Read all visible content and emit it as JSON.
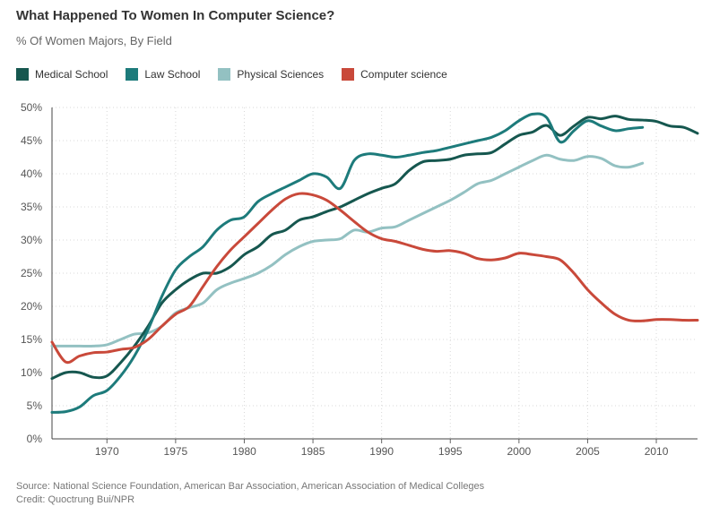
{
  "title": "What Happened To Women In Computer Science?",
  "subtitle": "% Of Women Majors, By Field",
  "source": "Source: National Science Foundation, American Bar Association, American Association of Medical Colleges",
  "credit": "Credit: Quoctrung Bui/NPR",
  "chart_data": {
    "type": "line",
    "title": "What Happened To Women In Computer Science?",
    "subtitle": "% Of Women Majors, By Field",
    "xlabel": "",
    "ylabel": "",
    "xlim": [
      1966,
      2013
    ],
    "ylim": [
      0,
      50
    ],
    "x_ticks": [
      1970,
      1975,
      1980,
      1985,
      1990,
      1995,
      2000,
      2005,
      2010
    ],
    "y_ticks": [
      0,
      5,
      10,
      15,
      20,
      25,
      30,
      35,
      40,
      45,
      50
    ],
    "y_tick_labels": [
      "0%",
      "5%",
      "10%",
      "15%",
      "20%",
      "25%",
      "30%",
      "35%",
      "40%",
      "45%",
      "50%"
    ],
    "grid": true,
    "legend_position": "top-left",
    "series": [
      {
        "name": "Medical School",
        "color": "#16574f",
        "points": [
          [
            1966,
            9.1
          ],
          [
            1967,
            10.0
          ],
          [
            1968,
            10.0
          ],
          [
            1969,
            9.3
          ],
          [
            1970,
            9.5
          ],
          [
            1971,
            11.5
          ],
          [
            1972,
            14.0
          ],
          [
            1973,
            17.0
          ],
          [
            1974,
            20.5
          ],
          [
            1975,
            22.5
          ],
          [
            1976,
            24.0
          ],
          [
            1977,
            25.0
          ],
          [
            1978,
            25.0
          ],
          [
            1979,
            26.0
          ],
          [
            1980,
            27.8
          ],
          [
            1981,
            29.0
          ],
          [
            1982,
            30.8
          ],
          [
            1983,
            31.5
          ],
          [
            1984,
            33.0
          ],
          [
            1985,
            33.5
          ],
          [
            1986,
            34.3
          ],
          [
            1987,
            35.0
          ],
          [
            1988,
            36.0
          ],
          [
            1989,
            37.0
          ],
          [
            1990,
            37.8
          ],
          [
            1991,
            38.5
          ],
          [
            1992,
            40.5
          ],
          [
            1993,
            41.8
          ],
          [
            1994,
            42.0
          ],
          [
            1995,
            42.2
          ],
          [
            1996,
            42.8
          ],
          [
            1997,
            43.0
          ],
          [
            1998,
            43.2
          ],
          [
            1999,
            44.5
          ],
          [
            2000,
            45.8
          ],
          [
            2001,
            46.3
          ],
          [
            2002,
            47.3
          ],
          [
            2003,
            45.8
          ],
          [
            2004,
            47.2
          ],
          [
            2005,
            48.5
          ],
          [
            2006,
            48.3
          ],
          [
            2007,
            48.7
          ],
          [
            2008,
            48.2
          ],
          [
            2009,
            48.1
          ],
          [
            2010,
            47.9
          ],
          [
            2011,
            47.2
          ],
          [
            2012,
            47.0
          ],
          [
            2013,
            46.1
          ]
        ]
      },
      {
        "name": "Law School",
        "color": "#1d7b7b",
        "points": [
          [
            1966,
            4.0
          ],
          [
            1967,
            4.1
          ],
          [
            1968,
            4.8
          ],
          [
            1969,
            6.5
          ],
          [
            1970,
            7.3
          ],
          [
            1971,
            9.5
          ],
          [
            1972,
            12.5
          ],
          [
            1973,
            16.5
          ],
          [
            1974,
            21.5
          ],
          [
            1975,
            25.5
          ],
          [
            1976,
            27.5
          ],
          [
            1977,
            29.0
          ],
          [
            1978,
            31.5
          ],
          [
            1979,
            33.0
          ],
          [
            1980,
            33.5
          ],
          [
            1981,
            35.8
          ],
          [
            1982,
            37.0
          ],
          [
            1983,
            38.0
          ],
          [
            1984,
            39.0
          ],
          [
            1985,
            40.0
          ],
          [
            1986,
            39.5
          ],
          [
            1987,
            37.8
          ],
          [
            1988,
            42.0
          ],
          [
            1989,
            43.0
          ],
          [
            1990,
            42.8
          ],
          [
            1991,
            42.5
          ],
          [
            1992,
            42.8
          ],
          [
            1993,
            43.2
          ],
          [
            1994,
            43.5
          ],
          [
            1995,
            44.0
          ],
          [
            1996,
            44.5
          ],
          [
            1997,
            45.0
          ],
          [
            1998,
            45.5
          ],
          [
            1999,
            46.5
          ],
          [
            2000,
            48.0
          ],
          [
            2001,
            49.0
          ],
          [
            2002,
            48.5
          ],
          [
            2003,
            44.8
          ],
          [
            2004,
            46.5
          ],
          [
            2005,
            48.0
          ],
          [
            2006,
            47.2
          ],
          [
            2007,
            46.5
          ],
          [
            2008,
            46.8
          ],
          [
            2009,
            47.0
          ]
        ]
      },
      {
        "name": "Physical Sciences",
        "color": "#93c1c2",
        "points": [
          [
            1966,
            14.0
          ],
          [
            1967,
            14.0
          ],
          [
            1968,
            14.0
          ],
          [
            1969,
            14.0
          ],
          [
            1970,
            14.2
          ],
          [
            1971,
            15.0
          ],
          [
            1972,
            15.8
          ],
          [
            1973,
            16.0
          ],
          [
            1974,
            17.0
          ],
          [
            1975,
            19.0
          ],
          [
            1976,
            19.8
          ],
          [
            1977,
            20.5
          ],
          [
            1978,
            22.5
          ],
          [
            1979,
            23.5
          ],
          [
            1980,
            24.2
          ],
          [
            1981,
            25.0
          ],
          [
            1982,
            26.2
          ],
          [
            1983,
            27.8
          ],
          [
            1984,
            29.0
          ],
          [
            1985,
            29.8
          ],
          [
            1986,
            30.0
          ],
          [
            1987,
            30.2
          ],
          [
            1988,
            31.5
          ],
          [
            1989,
            31.2
          ],
          [
            1990,
            31.8
          ],
          [
            1991,
            32.0
          ],
          [
            1992,
            33.0
          ],
          [
            1993,
            34.0
          ],
          [
            1994,
            35.0
          ],
          [
            1995,
            36.0
          ],
          [
            1996,
            37.2
          ],
          [
            1997,
            38.5
          ],
          [
            1998,
            39.0
          ],
          [
            1999,
            40.0
          ],
          [
            2000,
            41.0
          ],
          [
            2001,
            42.0
          ],
          [
            2002,
            42.8
          ],
          [
            2003,
            42.2
          ],
          [
            2004,
            42.0
          ],
          [
            2005,
            42.6
          ],
          [
            2006,
            42.3
          ],
          [
            2007,
            41.2
          ],
          [
            2008,
            41.0
          ],
          [
            2009,
            41.6
          ]
        ]
      },
      {
        "name": "Computer science",
        "color": "#c9493a",
        "points": [
          [
            1966,
            14.6
          ],
          [
            1967,
            11.6
          ],
          [
            1968,
            12.5
          ],
          [
            1969,
            13.0
          ],
          [
            1970,
            13.1
          ],
          [
            1971,
            13.5
          ],
          [
            1972,
            13.8
          ],
          [
            1973,
            15.0
          ],
          [
            1974,
            17.0
          ],
          [
            1975,
            18.8
          ],
          [
            1976,
            20.0
          ],
          [
            1977,
            23.0
          ],
          [
            1978,
            26.0
          ],
          [
            1979,
            28.5
          ],
          [
            1980,
            30.5
          ],
          [
            1981,
            32.5
          ],
          [
            1982,
            34.5
          ],
          [
            1983,
            36.2
          ],
          [
            1984,
            37.0
          ],
          [
            1985,
            36.8
          ],
          [
            1986,
            36.0
          ],
          [
            1987,
            34.5
          ],
          [
            1988,
            32.8
          ],
          [
            1989,
            31.2
          ],
          [
            1990,
            30.2
          ],
          [
            1991,
            29.8
          ],
          [
            1992,
            29.2
          ],
          [
            1993,
            28.6
          ],
          [
            1994,
            28.3
          ],
          [
            1995,
            28.4
          ],
          [
            1996,
            28.0
          ],
          [
            1997,
            27.2
          ],
          [
            1998,
            27.0
          ],
          [
            1999,
            27.3
          ],
          [
            2000,
            28.0
          ],
          [
            2001,
            27.8
          ],
          [
            2002,
            27.5
          ],
          [
            2003,
            27.0
          ],
          [
            2004,
            25.0
          ],
          [
            2005,
            22.5
          ],
          [
            2006,
            20.5
          ],
          [
            2007,
            18.8
          ],
          [
            2008,
            17.9
          ],
          [
            2009,
            17.8
          ],
          [
            2010,
            18.0
          ],
          [
            2011,
            18.0
          ],
          [
            2012,
            17.9
          ],
          [
            2013,
            17.9
          ]
        ]
      }
    ]
  }
}
